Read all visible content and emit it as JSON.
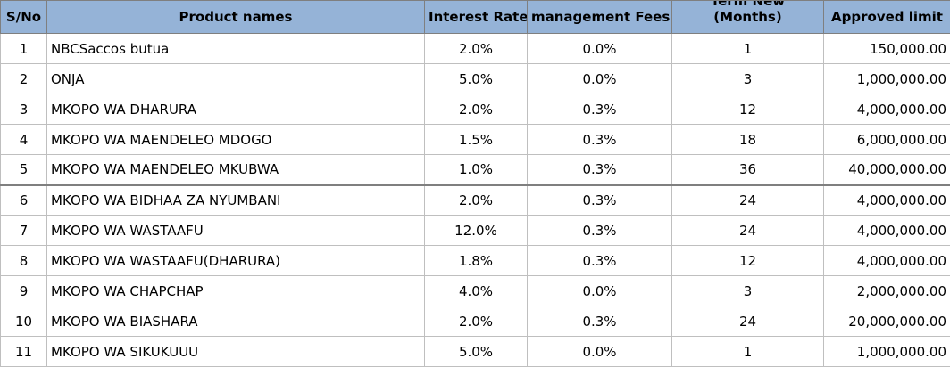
{
  "table": {
    "headers": {
      "sn": "S/No",
      "product": "Product names",
      "interest": "Interest Rate",
      "fees": "management Fees",
      "term_line1": "Term New",
      "term_line2": "(Months)",
      "limit": "Approved limit"
    },
    "rows": [
      {
        "sn": "1",
        "product": "NBCSaccos butua",
        "interest": "2.0%",
        "fees": "0.0%",
        "term": "1",
        "limit": "150,000.00"
      },
      {
        "sn": "2",
        "product": "ONJA",
        "interest": "5.0%",
        "fees": "0.0%",
        "term": "3",
        "limit": "1,000,000.00"
      },
      {
        "sn": "3",
        "product": "MKOPO WA DHARURA",
        "interest": "2.0%",
        "fees": "0.3%",
        "term": "12",
        "limit": "4,000,000.00"
      },
      {
        "sn": "4",
        "product": "MKOPO WA MAENDELEO MDOGO",
        "interest": "1.5%",
        "fees": "0.3%",
        "term": "18",
        "limit": "6,000,000.00"
      },
      {
        "sn": "5",
        "product": "MKOPO WA MAENDELEO MKUBWA",
        "interest": "1.0%",
        "fees": "0.3%",
        "term": "36",
        "limit": "40,000,000.00"
      },
      {
        "sn": "6",
        "product": "MKOPO WA BIDHAA ZA NYUMBANI",
        "interest": "2.0%",
        "fees": "0.3%",
        "term": "24",
        "limit": "4,000,000.00"
      },
      {
        "sn": "7",
        "product": "MKOPO WA WASTAAFU",
        "interest": "12.0%",
        "fees": "0.3%",
        "term": "24",
        "limit": "4,000,000.00"
      },
      {
        "sn": "8",
        "product": "MKOPO WA WASTAAFU(DHARURA)",
        "interest": "1.8%",
        "fees": "0.3%",
        "term": "12",
        "limit": "4,000,000.00"
      },
      {
        "sn": "9",
        "product": "MKOPO WA CHAPCHAP",
        "interest": "4.0%",
        "fees": "0.0%",
        "term": "3",
        "limit": "2,000,000.00"
      },
      {
        "sn": "10",
        "product": "MKOPO WA BIASHARA",
        "interest": "2.0%",
        "fees": "0.3%",
        "term": "24",
        "limit": "20,000,000.00"
      },
      {
        "sn": "11",
        "product": "MKOPO WA SIKUKUUU",
        "interest": "5.0%",
        "fees": "0.0%",
        "term": "1",
        "limit": "1,000,000.00"
      }
    ]
  }
}
